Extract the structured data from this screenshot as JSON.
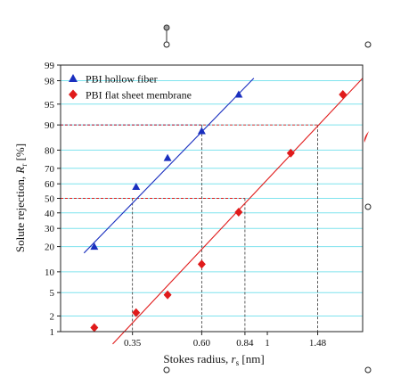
{
  "chart_data": {
    "type": "scatter",
    "xlabel_main": "Stokes radius, ",
    "xlabel_sym": "r",
    "xlabel_sub": "s",
    "xlabel_unit": " [nm]",
    "ylabel_main": "Solute rejection, ",
    "ylabel_sym": "R",
    "ylabel_sub": "r",
    "ylabel_unit": " [%]",
    "x_scale": "log",
    "y_scale": "probability",
    "xlim": [
      0.2,
      2.1
    ],
    "ylim": [
      1,
      99
    ],
    "x_tick_labels": [
      "0.35",
      "0.60",
      "0.84",
      "1",
      "1.48"
    ],
    "x_tick_values": [
      0.35,
      0.6,
      0.84,
      1.0,
      1.48
    ],
    "y_ticks": [
      1,
      2,
      5,
      10,
      20,
      30,
      40,
      50,
      60,
      70,
      80,
      90,
      95,
      98,
      99
    ],
    "grid": "horizontal cyan lines at y ticks",
    "legend_position": "top-left",
    "series": [
      {
        "name": "PBI hollow fiber",
        "marker": "triangle",
        "color": "#1a2fbf",
        "points": [
          {
            "x": 0.26,
            "y": 20
          },
          {
            "x": 0.36,
            "y": 58
          },
          {
            "x": 0.46,
            "y": 76
          },
          {
            "x": 0.6,
            "y": 88
          },
          {
            "x": 0.8,
            "y": 96.5
          }
        ],
        "fit_line": [
          {
            "x": 0.24,
            "y": 17
          },
          {
            "x": 0.9,
            "y": 98.2
          }
        ]
      },
      {
        "name": "PBI flat sheet membrane",
        "marker": "diamond",
        "color": "#e01b1b",
        "points": [
          {
            "x": 0.26,
            "y": 1.2
          },
          {
            "x": 0.36,
            "y": 2.3
          },
          {
            "x": 0.46,
            "y": 4.6
          },
          {
            "x": 0.6,
            "y": 12.5
          },
          {
            "x": 0.8,
            "y": 40.5
          },
          {
            "x": 1.2,
            "y": 78.5
          },
          {
            "x": 1.8,
            "y": 96.5
          }
        ],
        "fit_line": [
          {
            "x": 0.3,
            "y": 0.55
          },
          {
            "x": 2.1,
            "y": 98.2
          }
        ]
      }
    ],
    "dashed_guides": [
      {
        "color": "#1a2fbf",
        "y": 50,
        "x": 0.35
      },
      {
        "color": "#1a2fbf",
        "y": 90,
        "x": 0.6
      },
      {
        "color": "#e01b1b",
        "y": 50,
        "x": 0.84
      },
      {
        "color": "#e01b1b",
        "y": 90,
        "x": 1.48
      }
    ]
  }
}
